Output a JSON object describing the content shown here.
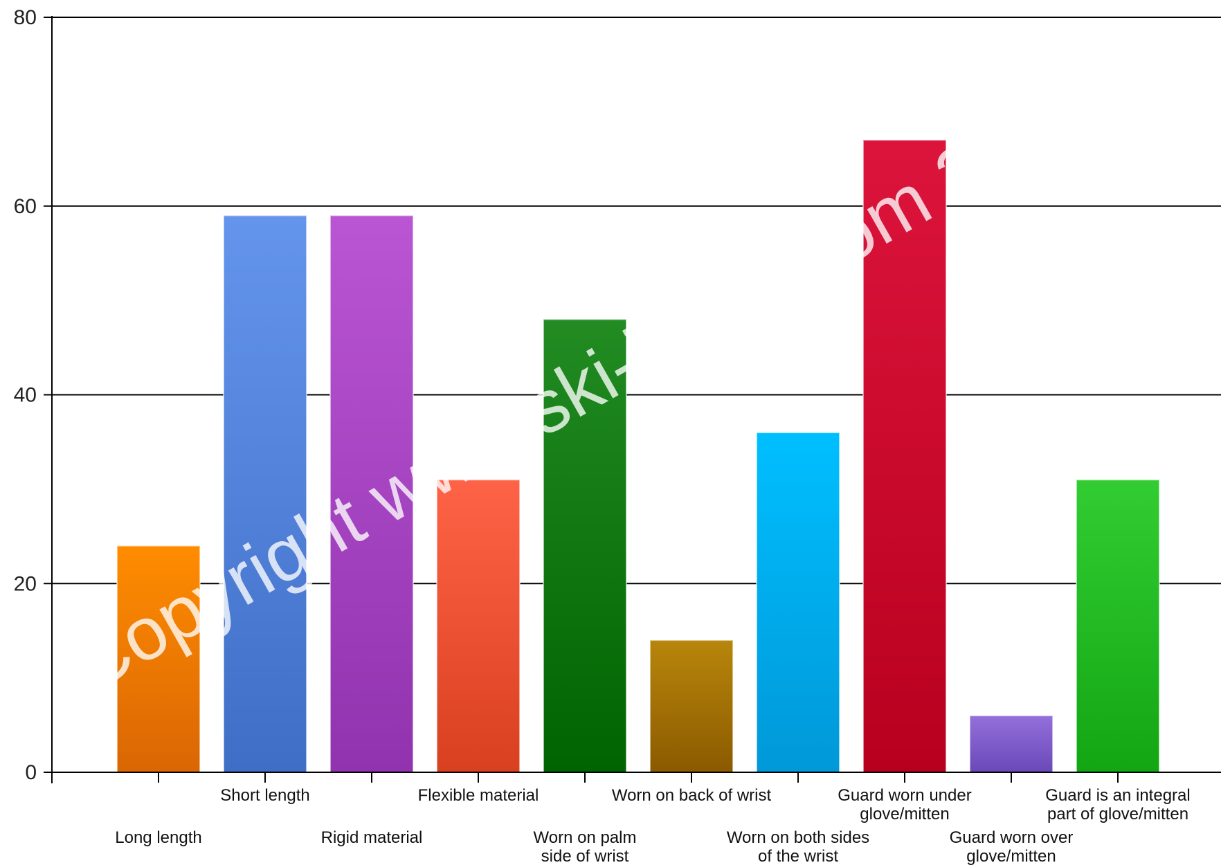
{
  "chart_data": {
    "type": "bar",
    "title": "",
    "xlabel": "",
    "ylabel": "",
    "ylim": [
      0,
      80
    ],
    "yticks": [
      0,
      20,
      40,
      60,
      80
    ],
    "grid": true,
    "categories": [
      "Long length",
      "Short length",
      "Rigid material",
      "Flexible material",
      "Worn on palm side of wrist",
      "Worn on back of wrist",
      "Worn on both sides of the wrist",
      "Guard worn under glove/mitten",
      "Guard worn over glove/mitten",
      "Guard is an integral part of glove/mitten"
    ],
    "label_lines": [
      [
        "Long length"
      ],
      [
        "Short length"
      ],
      [
        "Rigid material"
      ],
      [
        "Flexible material"
      ],
      [
        "Worn on palm",
        "side of wrist"
      ],
      [
        "Worn on back of wrist"
      ],
      [
        "Worn on both sides",
        "of the wrist"
      ],
      [
        "Guard worn under",
        "glove/mitten"
      ],
      [
        "Guard worn over",
        "glove/mitten"
      ],
      [
        "Guard is an integral",
        "part of glove/mitten"
      ]
    ],
    "values": [
      24,
      59,
      59,
      31,
      48,
      14,
      36,
      67,
      6,
      31
    ],
    "colors": [
      [
        "#FF8C00",
        "#DA6604"
      ],
      [
        "#6495ED",
        "#3F6EC6"
      ],
      [
        "#BA55D3",
        "#9133AE"
      ],
      [
        "#FF6347",
        "#D8401F"
      ],
      [
        "#228B22",
        "#006400"
      ],
      [
        "#B8860B",
        "#8B5A00"
      ],
      [
        "#00BFFF",
        "#0098D8"
      ],
      [
        "#DC143C",
        "#B8001E"
      ],
      [
        "#9370DB",
        "#6A48B7"
      ],
      [
        "#32CD32",
        "#13A613"
      ]
    ],
    "watermark": "Copyright www.ski-injury.com 2010"
  }
}
